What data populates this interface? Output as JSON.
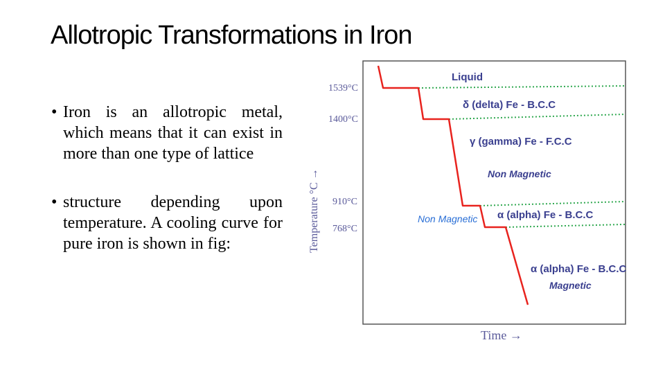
{
  "slide": {
    "title": "Allotropic Transformations in Iron",
    "bullets": [
      {
        "symbol": "•",
        "text": "Iron is an allotropic metal, which means that it can exist in more than one type of lattice"
      },
      {
        "symbol": "•",
        "text": "structure depending upon temperature. A cooling curve for pure iron is shown in fig:"
      }
    ]
  },
  "figure": {
    "y_axis_label": "Temperature °C →",
    "x_axis_label": "Time →",
    "temperatures": [
      "1539°C",
      "1400°C",
      "910°C",
      "768°C"
    ],
    "regions": {
      "liquid": "Liquid",
      "delta": "δ (delta) Fe - B.C.C",
      "gamma": "γ (gamma) Fe - F.C.C",
      "gamma_note": "Non Magnetic",
      "alpha_non_magnetic": "α (alpha) Fe - B.C.C",
      "alpha_side_note": "Non Magnetic",
      "alpha_magnetic": "α (alpha) Fe - B.C.C",
      "alpha_magnetic_note": "Magnetic"
    },
    "colors": {
      "curve": "#e8231e",
      "dotted_lines": "#2fa84f",
      "frame": "#555555",
      "labels": "#3a3f8f",
      "side_note": "#2a6fd6"
    }
  }
}
